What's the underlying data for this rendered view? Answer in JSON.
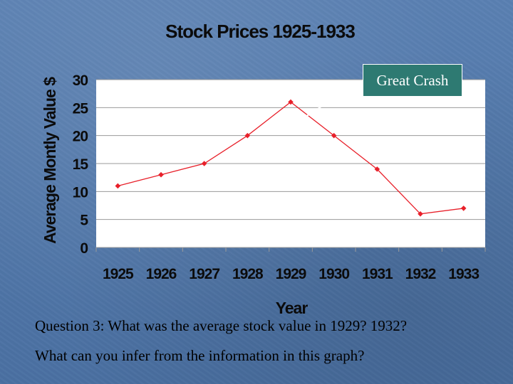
{
  "chart_data": {
    "type": "line",
    "title": "Stock Prices 1925-1933",
    "xlabel": "Year",
    "ylabel": "Average Montly Value $",
    "categories": [
      "1925",
      "1926",
      "1927",
      "1928",
      "1929",
      "1930",
      "1931",
      "1932",
      "1933"
    ],
    "values": [
      11,
      13,
      15,
      20,
      26,
      20,
      14,
      6,
      7
    ],
    "ylim": [
      0,
      30
    ],
    "yticks": [
      "0",
      "5",
      "10",
      "15",
      "20",
      "25",
      "30"
    ],
    "grid": true,
    "legend": "none",
    "line_color": "#e8202a",
    "plot_background": "#ffffff",
    "annotation": {
      "text": "Great Crash",
      "points_to": "1929",
      "box_color": "#2e7a72"
    }
  },
  "questions": {
    "line1": "Question 3: What was the average stock value in 1929? 1932?",
    "line2": "What can you infer from the information in this graph?"
  }
}
